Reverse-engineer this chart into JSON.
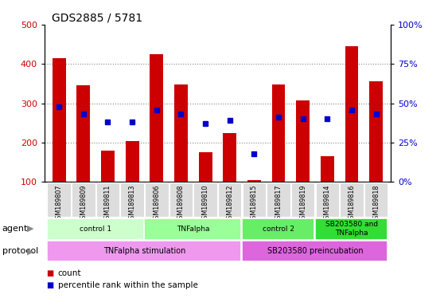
{
  "title": "GDS2885 / 5781",
  "samples": [
    "GSM189807",
    "GSM189809",
    "GSM189811",
    "GSM189813",
    "GSM189806",
    "GSM189808",
    "GSM189810",
    "GSM189812",
    "GSM189815",
    "GSM189817",
    "GSM189819",
    "GSM189814",
    "GSM189816",
    "GSM189818"
  ],
  "counts": [
    415,
    345,
    180,
    205,
    425,
    348,
    175,
    225,
    105,
    348,
    307,
    165,
    445,
    355
  ],
  "percentile_ranks": [
    48,
    43,
    38,
    38,
    46,
    43,
    37,
    39,
    18,
    41,
    40,
    40,
    46,
    43
  ],
  "ylim_left": [
    100,
    500
  ],
  "ylim_right": [
    0,
    100
  ],
  "yticks_left": [
    100,
    200,
    300,
    400,
    500
  ],
  "yticks_right": [
    0,
    25,
    50,
    75,
    100
  ],
  "bar_color": "#cc0000",
  "dot_color": "#0000cc",
  "bar_bottom": 100,
  "agent_groups": [
    {
      "label": "control 1",
      "start": 0,
      "end": 4,
      "color": "#ccffcc"
    },
    {
      "label": "TNFalpha",
      "start": 4,
      "end": 8,
      "color": "#99ff99"
    },
    {
      "label": "control 2",
      "start": 8,
      "end": 11,
      "color": "#66ee66"
    },
    {
      "label": "SB203580 and\nTNFalpha",
      "start": 11,
      "end": 14,
      "color": "#33dd33"
    }
  ],
  "protocol_groups": [
    {
      "label": "TNFalpha stimulation",
      "start": 0,
      "end": 8,
      "color": "#ee99ee"
    },
    {
      "label": "SB203580 preincubation",
      "start": 8,
      "end": 14,
      "color": "#dd66dd"
    }
  ],
  "legend_items": [
    {
      "color": "#cc0000",
      "label": "count"
    },
    {
      "color": "#0000cc",
      "label": "percentile rank within the sample"
    }
  ],
  "left_axis_color": "#cc0000",
  "right_axis_color": "#0000cc",
  "grid_color": "#888888",
  "tick_bg_color": "#dddddd",
  "agent_colors_light": [
    "#ccffcc",
    "#99ff99",
    "#66ee66",
    "#33dd33"
  ],
  "proto_colors": [
    "#ee99ee",
    "#cc77cc"
  ]
}
